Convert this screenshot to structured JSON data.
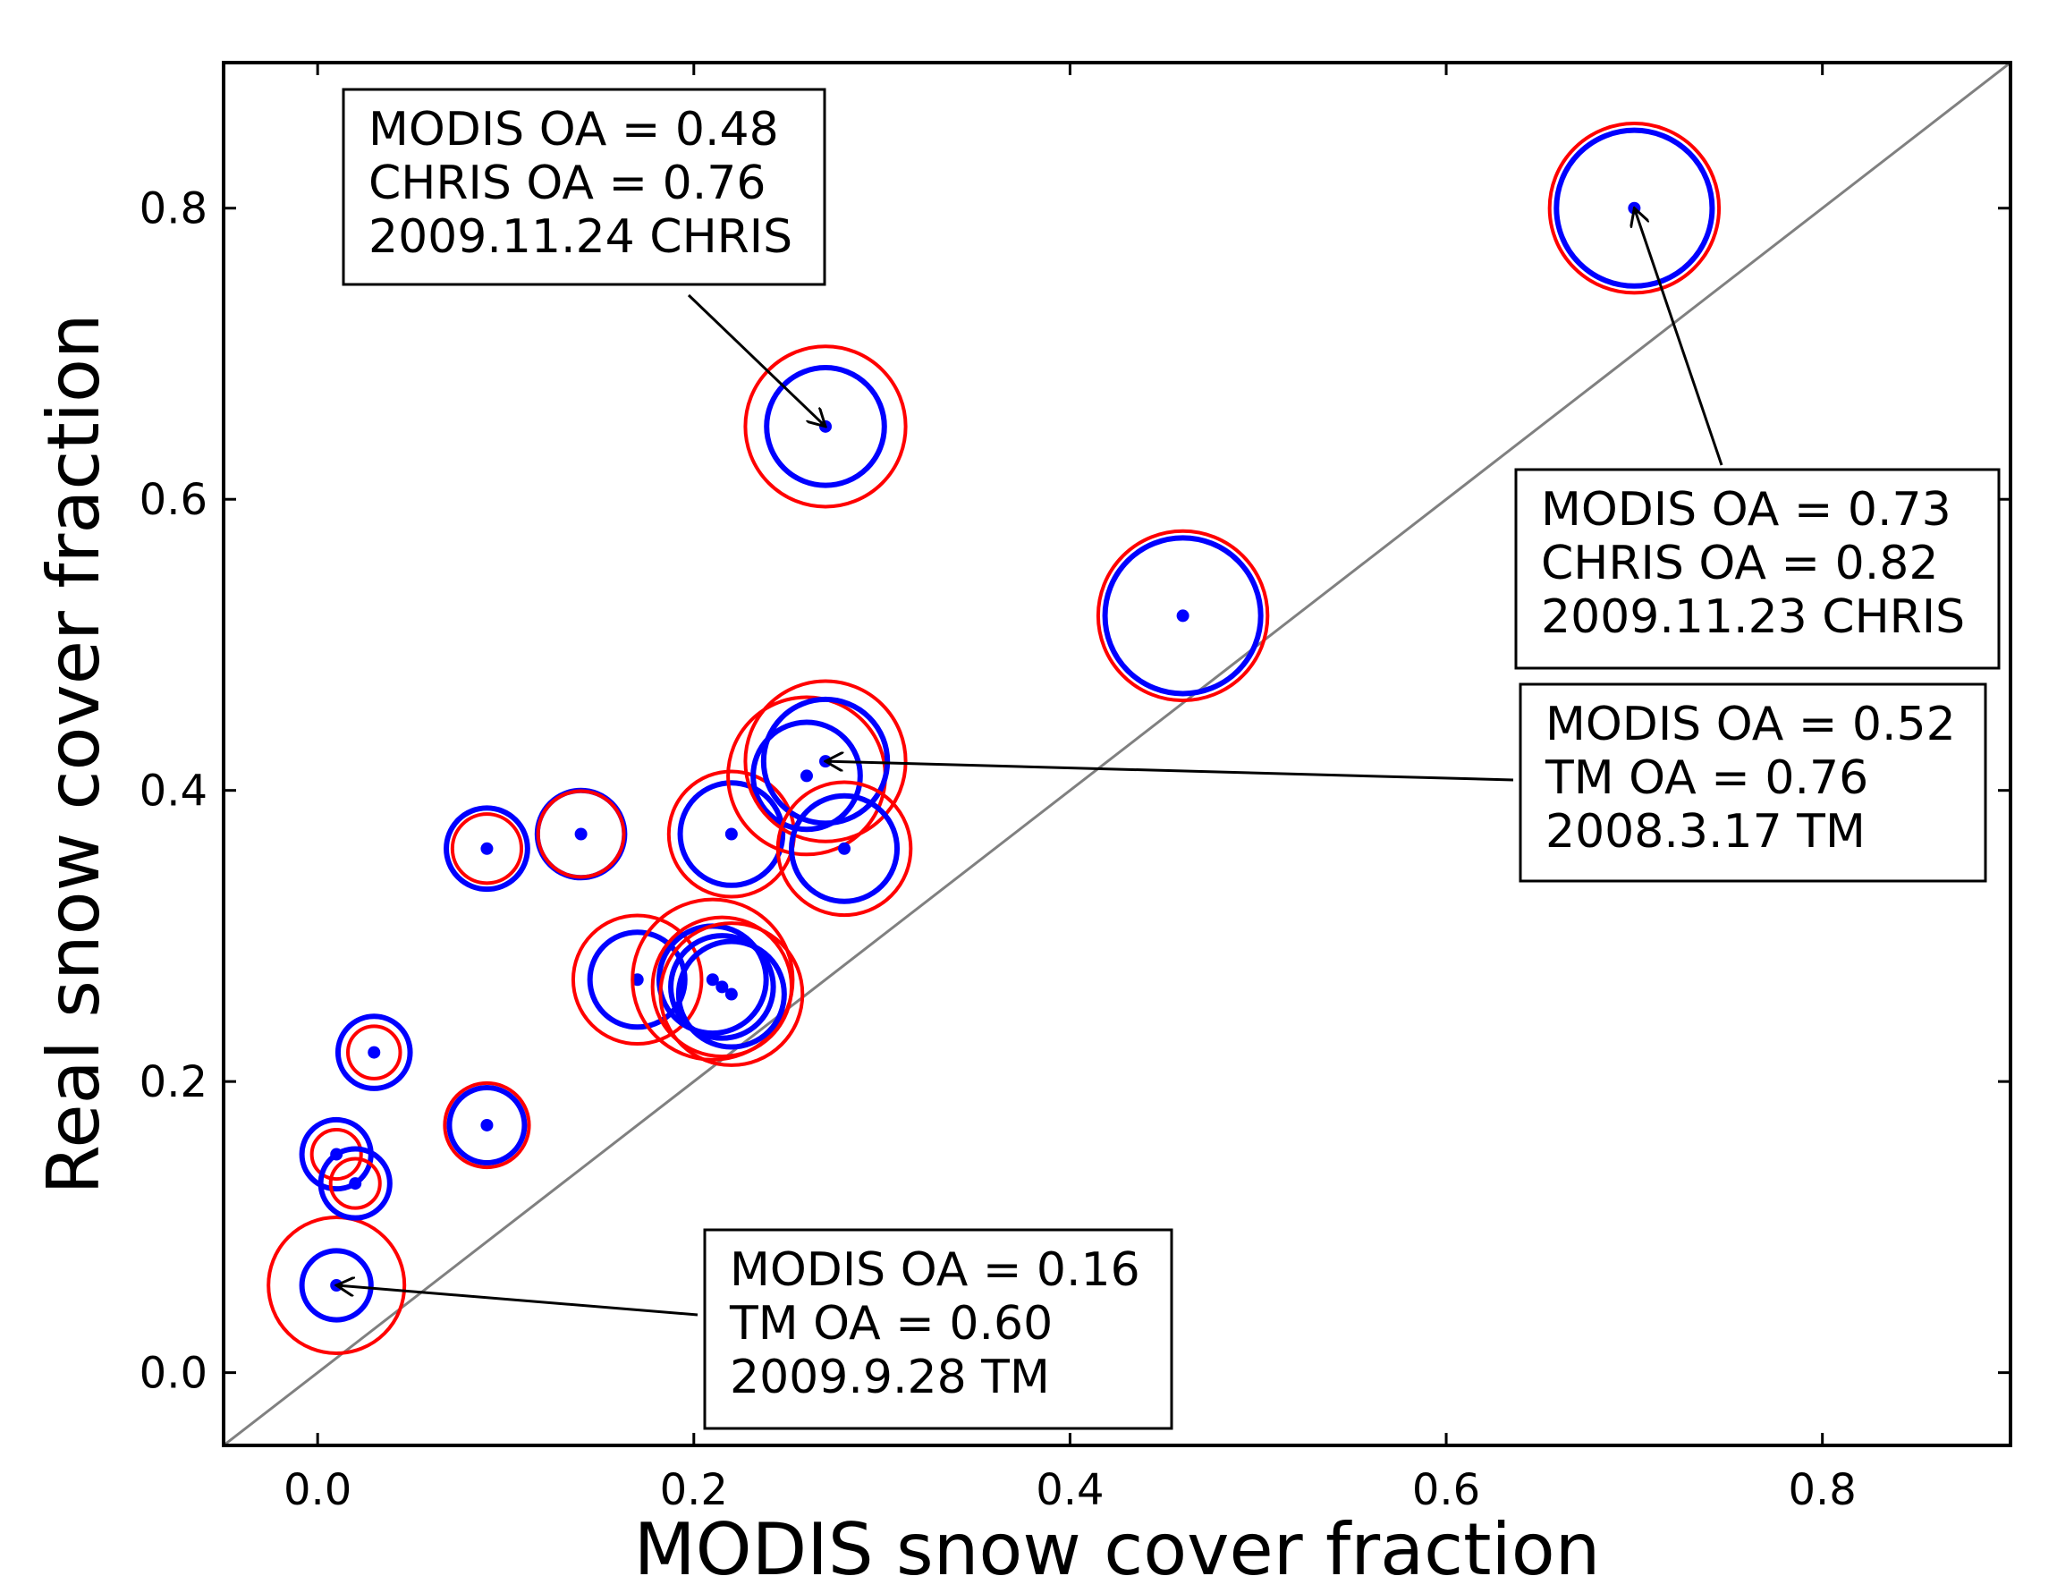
{
  "chart_data": {
    "type": "scatter",
    "title": "",
    "xlabel": "MODIS snow cover fraction",
    "ylabel": "Real snow cover fraction",
    "xlim": [
      -0.05,
      0.9
    ],
    "ylim": [
      -0.05,
      0.9
    ],
    "xticks": [
      "0.0",
      "0.2",
      "0.4",
      "0.6",
      "0.8"
    ],
    "yticks": [
      "0.0",
      "0.2",
      "0.4",
      "0.6",
      "0.8"
    ],
    "xtick_values": [
      0.0,
      0.2,
      0.4,
      0.6,
      0.8
    ],
    "ytick_values": [
      0.0,
      0.2,
      0.4,
      0.6,
      0.8
    ],
    "reference_line": {
      "name": "1:1 line",
      "color": "#808080"
    },
    "marker_colors": {
      "modis_circle": "#0000ff",
      "chris_tm_circle": "#ff0000",
      "center_dot": "#0000ff"
    },
    "points": [
      {
        "x": 0.01,
        "y": 0.06,
        "modis_oa": 0.16,
        "hr_oa": 0.6
      },
      {
        "x": 0.01,
        "y": 0.15,
        "modis_oa": 0.16,
        "hr_oa": 0.03
      },
      {
        "x": 0.02,
        "y": 0.13,
        "modis_oa": 0.16,
        "hr_oa": 0.03
      },
      {
        "x": 0.03,
        "y": 0.22,
        "modis_oa": 0.18,
        "hr_oa": 0.05
      },
      {
        "x": 0.09,
        "y": 0.17,
        "modis_oa": 0.2,
        "hr_oa": 0.26
      },
      {
        "x": 0.09,
        "y": 0.36,
        "modis_oa": 0.24,
        "hr_oa": 0.16
      },
      {
        "x": 0.14,
        "y": 0.37,
        "modis_oa": 0.28,
        "hr_oa": 0.27
      },
      {
        "x": 0.17,
        "y": 0.27,
        "modis_oa": 0.33,
        "hr_oa": 0.55
      },
      {
        "x": 0.21,
        "y": 0.27,
        "modis_oa": 0.41,
        "hr_oa": 0.76
      },
      {
        "x": 0.215,
        "y": 0.265,
        "modis_oa": 0.38,
        "hr_oa": 0.62
      },
      {
        "x": 0.22,
        "y": 0.26,
        "modis_oa": 0.4,
        "hr_oa": 0.64
      },
      {
        "x": 0.22,
        "y": 0.37,
        "modis_oa": 0.38,
        "hr_oa": 0.53
      },
      {
        "x": 0.26,
        "y": 0.41,
        "modis_oa": 0.41,
        "hr_oa": 0.74
      },
      {
        "x": 0.27,
        "y": 0.42,
        "modis_oa": 0.52,
        "hr_oa": 0.76
      },
      {
        "x": 0.28,
        "y": 0.36,
        "modis_oa": 0.4,
        "hr_oa": 0.58
      },
      {
        "x": 0.27,
        "y": 0.65,
        "modis_oa": 0.48,
        "hr_oa": 0.76
      },
      {
        "x": 0.46,
        "y": 0.52,
        "modis_oa": 0.73,
        "hr_oa": 0.82
      },
      {
        "x": 0.7,
        "y": 0.8,
        "modis_oa": 0.73,
        "hr_oa": 0.82
      }
    ],
    "annotations": [
      {
        "name": "annotation-2009-11-24",
        "point_index": 15,
        "box_anchor": "top-center",
        "lines": [
          "MODIS OA = 0.48",
          "CHRIS OA = 0.76",
          "2009.11.24 CHRIS"
        ]
      },
      {
        "name": "annotation-2009-11-23",
        "point_index": 17,
        "box_anchor": "right",
        "lines": [
          "MODIS OA = 0.73",
          "CHRIS OA = 0.82",
          "2009.11.23 CHRIS"
        ]
      },
      {
        "name": "annotation-2008-3-17",
        "point_index": 13,
        "box_anchor": "right",
        "lines": [
          "MODIS OA = 0.52",
          "TM OA = 0.76",
          "2008.3.17 TM"
        ]
      },
      {
        "name": "annotation-2009-9-28",
        "point_index": 0,
        "box_anchor": "bottom-center",
        "lines": [
          "MODIS OA = 0.16",
          "TM OA = 0.60",
          "2009.9.28 TM"
        ]
      }
    ]
  }
}
